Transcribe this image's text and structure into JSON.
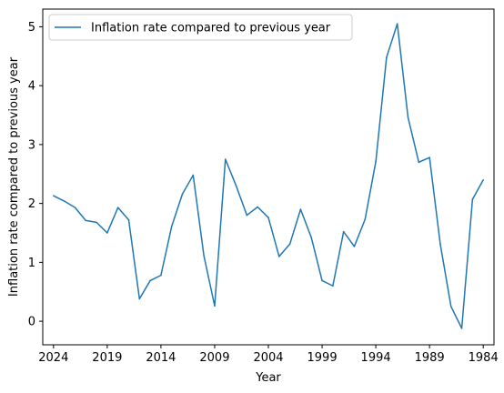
{
  "chart_data": {
    "type": "line",
    "xlabel": "Year",
    "ylabel": "Inflation rate compared to previous year",
    "x_reversed": true,
    "xlim": [
      2025,
      1983
    ],
    "ylim": [
      -0.4,
      5.3
    ],
    "xticks": [
      2024,
      2019,
      2014,
      2009,
      2004,
      1999,
      1994,
      1989,
      1984
    ],
    "yticks": [
      0,
      1,
      2,
      3,
      4,
      5
    ],
    "grid": false,
    "legend_position": "top-left",
    "line_color": "#1f77b4",
    "series": [
      {
        "name": "Inflation rate compared to previous year",
        "x": [
          2024,
          2023,
          2022,
          2021,
          2020,
          2019,
          2018,
          2017,
          2016,
          2015,
          2014,
          2013,
          2012,
          2011,
          2010,
          2009,
          2008,
          2007,
          2006,
          2005,
          2004,
          2003,
          2002,
          2001,
          2000,
          1999,
          1998,
          1997,
          1996,
          1995,
          1994,
          1993,
          1992,
          1991,
          1990,
          1989,
          1988,
          1987,
          1986,
          1985,
          1984
        ],
        "y": [
          2.13,
          2.04,
          1.93,
          1.71,
          1.68,
          1.5,
          1.93,
          1.72,
          0.38,
          0.69,
          0.78,
          1.61,
          2.16,
          2.48,
          1.11,
          0.26,
          2.75,
          2.3,
          1.8,
          1.94,
          1.76,
          1.1,
          1.31,
          1.9,
          1.42,
          0.69,
          0.6,
          1.52,
          1.27,
          1.73,
          2.71,
          4.48,
          5.05,
          3.46,
          2.7,
          2.78,
          1.31,
          0.25,
          -0.12,
          2.07,
          2.4
        ]
      }
    ]
  }
}
